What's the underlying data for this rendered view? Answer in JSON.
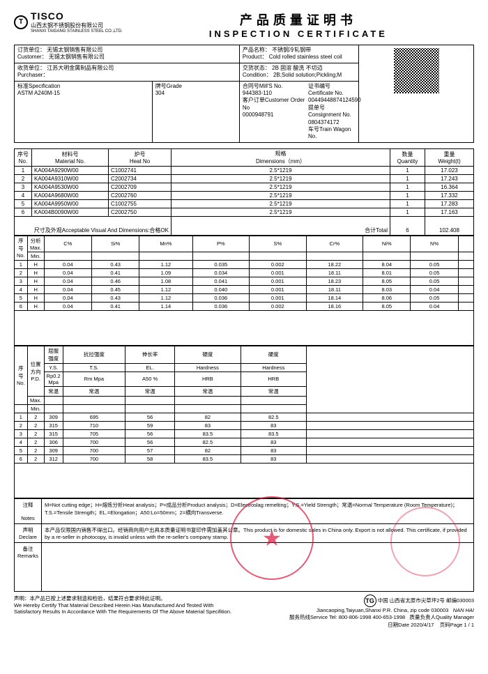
{
  "header": {
    "logo_letter": "T",
    "tisco": "TISCO",
    "company_cn": "山西太钢不锈钢股份有限公司",
    "company_en": "SHANXI TAIGANG STAINLESS STEEL CO.,LTD.",
    "title_cn": "产品质量证明书",
    "title_en": "INSPECTION CERTIFICATE"
  },
  "info": {
    "customer_label": "订货单位：",
    "customer_cn": "无锡太钢销售有限公司",
    "customer_label_en": "Customer：",
    "customer_en": "无锡太钢销售有限公司",
    "purchaser_label": "收货单位：",
    "purchaser_cn": "江苏大明金属制品有限公司",
    "purchaser_label_en": "Purchaser：",
    "spec_label": "标准Specification",
    "spec_value": "ASTM A240M-15",
    "grade_label": "牌号Grade",
    "grade_value": "304",
    "product_label": "产品名称：",
    "product_cn": "不锈钢冷轧钢带",
    "product_label_en": "Product：",
    "product_en": "Cold rolled stainless steel coil",
    "condition_label": "交货状态：",
    "condition_cn": "2B 固溶 酸洗 不切边",
    "condition_label_en": "Condition：",
    "condition_en": "2B;Solid solution;Pickling;M",
    "mill_label": "合同号Mill'S No.",
    "mill_value": "944383-110",
    "order_label": "客户订单Customer Order No",
    "order_value": "0000948791",
    "cert_label": "证书编号Certificate No.",
    "cert_value": "00449448874124590",
    "consign_label": "提单号Consignment No.",
    "consign_value": "0804374172",
    "wagon_label": "车号Train Wagon No."
  },
  "materials": {
    "hdr_no": "序号",
    "hdr_no_en": "No.",
    "hdr_mat": "材料号",
    "hdr_mat_en": "Material No.",
    "hdr_heat": "炉号",
    "hdr_heat_en": "Heat No",
    "hdr_dim": "规格",
    "hdr_dim_en": "Dimensions（mm）",
    "hdr_qty": "数量",
    "hdr_qty_en": "Quantity",
    "hdr_wt": "重量",
    "hdr_wt_en": "Weight(t)",
    "rows": [
      {
        "no": "1",
        "mat": "KA004A9290W00",
        "heat": "C1002741",
        "dim": "2.5*1219",
        "qty": "1",
        "wt": "17.023"
      },
      {
        "no": "2",
        "mat": "KA004A9310W00",
        "heat": "C2002734",
        "dim": "2.5*1219",
        "qty": "1",
        "wt": "17.243"
      },
      {
        "no": "3",
        "mat": "KA004A9530W00",
        "heat": "C2002709",
        "dim": "2.5*1219",
        "qty": "1",
        "wt": "16.364"
      },
      {
        "no": "4",
        "mat": "KA004A9680W00",
        "heat": "C2002760",
        "dim": "2.5*1219",
        "qty": "1",
        "wt": "17.332"
      },
      {
        "no": "5",
        "mat": "KA004A9950W00",
        "heat": "C1002755",
        "dim": "2.5*1219",
        "qty": "1",
        "wt": "17.283"
      },
      {
        "no": "6",
        "mat": "KA004B0090W00",
        "heat": "C2002750",
        "dim": "2.5*1219",
        "qty": "1",
        "wt": "17.163"
      }
    ],
    "accept_label": "尺寸及外观Acceptable Visual And Dimensions:合格OK",
    "total_label": "合计Total",
    "total_qty": "6",
    "total_wt": "102.408"
  },
  "chem": {
    "hdr_no": "序号",
    "hdr_no_en": "No.",
    "hdr_type": "分析",
    "hdr_type2": "Max.",
    "hdr_min": "Min.",
    "cols": [
      "C%",
      "Si%",
      "Mn%",
      "P%",
      "S%",
      "Cr%",
      "Ni%",
      "N%"
    ],
    "rows": [
      {
        "no": "1",
        "t": "H",
        "v": [
          "0.04",
          "0.43",
          "1.12",
          "0.035",
          "0.002",
          "18.22",
          "8.04",
          "0.05"
        ]
      },
      {
        "no": "2",
        "t": "H",
        "v": [
          "0.04",
          "0.41",
          "1.09",
          "0.034",
          "0.001",
          "18.11",
          "8.01",
          "0.05"
        ]
      },
      {
        "no": "3",
        "t": "H",
        "v": [
          "0.04",
          "0.46",
          "1.08",
          "0.041",
          "0.001",
          "18.23",
          "8.05",
          "0.05"
        ]
      },
      {
        "no": "4",
        "t": "H",
        "v": [
          "0.04",
          "0.45",
          "1.12",
          "0.040",
          "0.001",
          "18.11",
          "8.03",
          "0.04"
        ]
      },
      {
        "no": "5",
        "t": "H",
        "v": [
          "0.04",
          "0.43",
          "1.12",
          "0.036",
          "0.001",
          "18.14",
          "8.06",
          "0.05"
        ]
      },
      {
        "no": "6",
        "t": "H",
        "v": [
          "0.04",
          "0.41",
          "1.14",
          "0.036",
          "0.002",
          "18.16",
          "8.05",
          "0.04"
        ]
      }
    ]
  },
  "mech": {
    "hdr_no": "序号",
    "hdr_no_en": "No.",
    "hdr_pos": "位置",
    "hdr_dir": "方向",
    "hdr_pd": "P.D.",
    "h1": [
      "屈服强度",
      "抗拉强度",
      "伸长率",
      "硬度",
      "硬度"
    ],
    "h2": [
      "Y.S.",
      "T.S.",
      "EL.",
      "Hardness",
      "Hardness"
    ],
    "h3": [
      "Rp0.2 Mpa",
      "Rm Mpa",
      "A50 %",
      "HRB",
      "HRB"
    ],
    "h4": [
      "常温",
      "常温",
      "常温",
      "常温",
      "常温"
    ],
    "max": "Max.",
    "min": "Min.",
    "rows": [
      {
        "no": "1",
        "d": "2",
        "v": [
          "309",
          "695",
          "56",
          "82",
          "82.5"
        ]
      },
      {
        "no": "2",
        "d": "2",
        "v": [
          "315",
          "710",
          "59",
          "83",
          "83"
        ]
      },
      {
        "no": "3",
        "d": "2",
        "v": [
          "315",
          "705",
          "56",
          "83.5",
          "83.5"
        ]
      },
      {
        "no": "4",
        "d": "2",
        "v": [
          "306",
          "700",
          "56",
          "82.5",
          "83"
        ]
      },
      {
        "no": "5",
        "d": "2",
        "v": [
          "309",
          "700",
          "57",
          "82",
          "83"
        ]
      },
      {
        "no": "6",
        "d": "2",
        "v": [
          "312",
          "700",
          "58",
          "83.5",
          "83"
        ]
      }
    ]
  },
  "notes": {
    "label1": "注释",
    "label1_en": "Notes",
    "text1": "M=Not cutting edge；H=熔炼分析Heat analysis；P=成品分析Product analysis；D=Electroslag remelting；Y.S.=Yield Strength；常温=Normal Temperature (Room Temperature)；T.S.=Tensile Strength；EL.=Elongation；A50:Lo=50mm；2=横向Transverse.",
    "label2": "声明",
    "label2_en": "Declare",
    "text2": "本产品仅限国内销售不得出口。经销商向用户出具本质量证明书复印件需加盖其公章。This product is for domestic sales in China only. Export is not allowed. This certificate, if provided by a re-seller in photocopy, is invalid unless with the re-seller's company stamp.",
    "label3": "备注",
    "label3_en": "Remarks"
  },
  "footer": {
    "cert_cn": "声明：本产品已按上述要求制造和检验，结果符合要求特此证明。",
    "cert_en1": "We Hereby Certify That Material Described Herein Has Manufactured And Tested With",
    "cert_en2": "Satisfactory Results In Accordance With The Requirements Of The Above Material Specifition.",
    "addr": "中国 山西省太原市尖草坪2号  邮编030003",
    "addr_en": "Jiancaoping,Taiyuan,Shanxi P.R. China, zip code 030003",
    "tel": "服务热线Service Tel: 800-806-1998    400-653-1998",
    "qm": "质量负责人Quality Manager",
    "nanhai": "NAN HAI",
    "date": "日期Date  2020/4/17",
    "page": "页码Page  1 / 1",
    "tg": "TG"
  }
}
